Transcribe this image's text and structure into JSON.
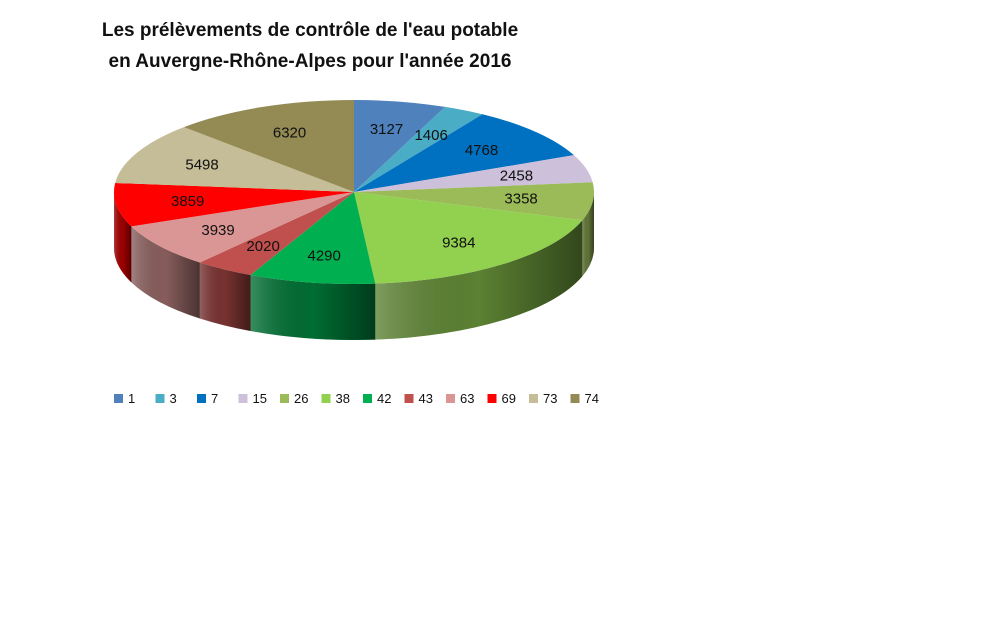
{
  "chart_data": {
    "type": "pie",
    "title_lines": [
      "Les prélèvements de contrôle de l'eau potable",
      "en Auvergne-Rhône-Alpes pour l'année 2016"
    ],
    "categories": [
      "1",
      "3",
      "7",
      "15",
      "26",
      "38",
      "42",
      "43",
      "63",
      "69",
      "73",
      "74"
    ],
    "values": [
      3127,
      1406,
      4768,
      2458,
      3358,
      9384,
      4290,
      2020,
      3939,
      3859,
      5498,
      6320
    ],
    "colors": [
      "#4F81BD",
      "#4BACC6",
      "#0070C0",
      "#CCC0DA",
      "#9BBB59",
      "#92D050",
      "#00B050",
      "#C0504D",
      "#DA9694",
      "#FF0000",
      "#C4BD97",
      "#948A54"
    ],
    "legend": "bottom",
    "style": "3d"
  }
}
